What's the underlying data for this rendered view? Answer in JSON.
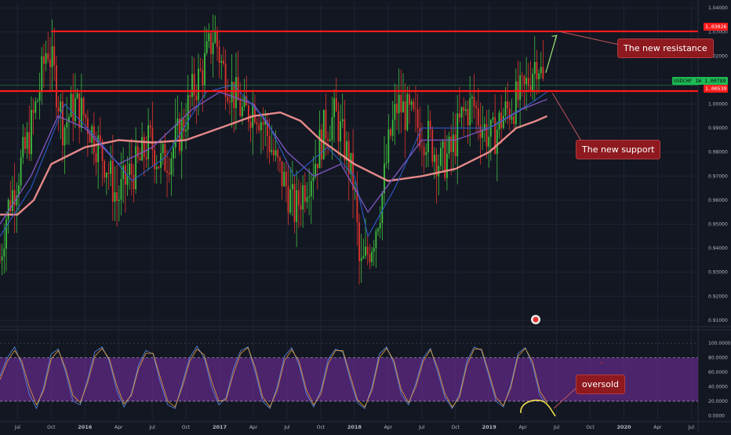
{
  "chart_data": [
    {
      "type": "candlestick",
      "panel": "price",
      "symbol_label": "USDCHF 1W",
      "current_value_label": "1.00789",
      "yaxis": {
        "range": [
          0.908,
          1.042
        ],
        "ticks": [
          "1.04000",
          "1.03000",
          "1.02000",
          "1.01000",
          "1.00000",
          "0.99000",
          "0.98000",
          "0.97000",
          "0.96000",
          "0.95000",
          "0.94000",
          "0.93000",
          "0.92000",
          "0.91000"
        ],
        "tick_values": [
          1.04,
          1.03,
          1.02,
          1.01,
          1.0,
          0.99,
          0.98,
          0.97,
          0.96,
          0.95,
          0.94,
          0.93,
          0.92,
          0.91
        ]
      },
      "xaxis": {
        "ticks": [
          "Jul",
          "Oct",
          "2016",
          "Apr",
          "Jul",
          "Oct",
          "2017",
          "Apr",
          "Jul",
          "Oct",
          "2018",
          "Apr",
          "Jul",
          "Oct",
          "2019",
          "Apr",
          "Jul",
          "Oct",
          "2020",
          "Apr",
          "Jul"
        ],
        "tick_times": [
          2015.5,
          2015.75,
          2016.0,
          2016.25,
          2016.5,
          2016.75,
          2017.0,
          2017.25,
          2017.5,
          2017.75,
          2018.0,
          2018.25,
          2018.5,
          2018.75,
          2019.0,
          2019.25,
          2019.5,
          2019.75,
          2020.0,
          2020.25,
          2020.5
        ],
        "range": [
          2015.37,
          2020.55
        ]
      },
      "price_path": [
        [
          2015.37,
          0.935
        ],
        [
          2015.42,
          0.955
        ],
        [
          2015.5,
          0.97
        ],
        [
          2015.58,
          0.985
        ],
        [
          2015.66,
          1.005
        ],
        [
          2015.72,
          1.025
        ],
        [
          2015.78,
          1.01
        ],
        [
          2015.84,
          0.99
        ],
        [
          2015.92,
          1.0
        ],
        [
          2016.0,
          0.995
        ],
        [
          2016.08,
          0.985
        ],
        [
          2016.16,
          0.975
        ],
        [
          2016.24,
          0.96
        ],
        [
          2016.32,
          0.97
        ],
        [
          2016.4,
          0.975
        ],
        [
          2016.48,
          0.985
        ],
        [
          2016.56,
          0.975
        ],
        [
          2016.64,
          0.98
        ],
        [
          2016.72,
          0.99
        ],
        [
          2016.8,
          1.005
        ],
        [
          2016.88,
          1.015
        ],
        [
          2016.96,
          1.03
        ],
        [
          2017.02,
          1.015
        ],
        [
          2017.1,
          1.005
        ],
        [
          2017.18,
          0.995
        ],
        [
          2017.26,
          1.0
        ],
        [
          2017.34,
          0.99
        ],
        [
          2017.42,
          0.975
        ],
        [
          2017.5,
          0.965
        ],
        [
          2017.56,
          0.955
        ],
        [
          2017.62,
          0.965
        ],
        [
          2017.7,
          0.975
        ],
        [
          2017.78,
          0.99
        ],
        [
          2017.86,
          0.995
        ],
        [
          2017.94,
          0.98
        ],
        [
          2018.0,
          0.965
        ],
        [
          2018.04,
          0.93
        ],
        [
          2018.08,
          0.935
        ],
        [
          2018.14,
          0.945
        ],
        [
          2018.2,
          0.96
        ],
        [
          2018.26,
          0.985
        ],
        [
          2018.32,
          1.0
        ],
        [
          2018.4,
          0.995
        ],
        [
          2018.48,
          0.99
        ],
        [
          2018.56,
          0.985
        ],
        [
          2018.64,
          0.975
        ],
        [
          2018.72,
          0.98
        ],
        [
          2018.8,
          0.995
        ],
        [
          2018.88,
          1.0
        ],
        [
          2018.96,
          0.99
        ],
        [
          2019.02,
          0.985
        ],
        [
          2019.1,
          0.995
        ],
        [
          2019.18,
          1.0
        ],
        [
          2019.26,
          1.005
        ],
        [
          2019.32,
          1.015
        ],
        [
          2019.36,
          1.02
        ],
        [
          2019.4,
          1.008
        ]
      ],
      "moving_averages": [
        {
          "color": "#f08f8f",
          "width": 2.4,
          "points": [
            [
              2015.37,
              0.954
            ],
            [
              2015.5,
              0.954
            ],
            [
              2015.62,
              0.96
            ],
            [
              2015.75,
              0.975
            ],
            [
              2016.0,
              0.982
            ],
            [
              2016.25,
              0.985
            ],
            [
              2016.5,
              0.984
            ],
            [
              2016.75,
              0.985
            ],
            [
              2017.0,
              0.99
            ],
            [
              2017.25,
              0.995
            ],
            [
              2017.45,
              0.9965
            ],
            [
              2017.6,
              0.993
            ],
            [
              2017.75,
              0.985
            ],
            [
              2018.0,
              0.975
            ],
            [
              2018.25,
              0.968
            ],
            [
              2018.5,
              0.97
            ],
            [
              2018.75,
              0.973
            ],
            [
              2019.0,
              0.98
            ],
            [
              2019.2,
              0.99
            ],
            [
              2019.35,
              0.993
            ],
            [
              2019.43,
              0.995
            ]
          ]
        },
        {
          "color": "#7e57c2",
          "width": 1.4,
          "points": [
            [
              2015.37,
              0.95
            ],
            [
              2015.6,
              0.97
            ],
            [
              2015.8,
              0.995
            ],
            [
              2016.0,
              0.99
            ],
            [
              2016.25,
              0.975
            ],
            [
              2016.5,
              0.982
            ],
            [
              2016.8,
              0.998
            ],
            [
              2017.0,
              1.005
            ],
            [
              2017.25,
              1.0
            ],
            [
              2017.5,
              0.98
            ],
            [
              2017.7,
              0.97
            ],
            [
              2017.9,
              0.975
            ],
            [
              2018.1,
              0.955
            ],
            [
              2018.3,
              0.97
            ],
            [
              2018.5,
              0.985
            ],
            [
              2018.75,
              0.985
            ],
            [
              2019.0,
              0.99
            ],
            [
              2019.25,
              0.998
            ],
            [
              2019.43,
              1.002
            ]
          ]
        },
        {
          "color": "#2f5fd0",
          "width": 1.1,
          "points": [
            [
              2015.37,
              0.945
            ],
            [
              2015.6,
              0.965
            ],
            [
              2015.85,
              1.0
            ],
            [
              2016.1,
              0.985
            ],
            [
              2016.35,
              0.968
            ],
            [
              2016.6,
              0.978
            ],
            [
              2016.9,
              1.005
            ],
            [
              2017.1,
              1.008
            ],
            [
              2017.35,
              0.993
            ],
            [
              2017.55,
              0.97
            ],
            [
              2017.8,
              0.982
            ],
            [
              2018.0,
              0.97
            ],
            [
              2018.1,
              0.945
            ],
            [
              2018.3,
              0.965
            ],
            [
              2018.5,
              0.99
            ],
            [
              2018.75,
              0.99
            ],
            [
              2019.0,
              0.99
            ],
            [
              2019.3,
              1.0
            ],
            [
              2019.43,
              1.005
            ]
          ]
        }
      ],
      "horizontal_levels": [
        {
          "value": 1.03026,
          "label": "1.03026",
          "color": "#ff1b1b",
          "x_start": 2015.75
        },
        {
          "value": 1.00539,
          "label": "1.00539",
          "color": "#ff1b1b",
          "x_start": 2015.37
        }
      ],
      "arrow": {
        "from": [
          2019.42,
          1.013
        ],
        "to": [
          2019.5,
          1.0285
        ],
        "color": "#9be67a"
      },
      "annotations": [
        {
          "text": "The new resistance",
          "value": 1.025,
          "time": 2019.88,
          "anchor_value": 1.0302,
          "anchor_time": 2019.52
        },
        {
          "text": "The new support",
          "value": 0.982,
          "time": 2019.79,
          "anchor_value": 1.0045,
          "anchor_time": 2019.47
        }
      ]
    },
    {
      "type": "line",
      "panel": "oscillator",
      "yaxis": {
        "range": [
          -5,
          110
        ],
        "ticks": [
          "100.0000",
          "80.0000",
          "60.0000",
          "40.0000",
          "20.0000",
          "0.0000"
        ],
        "tick_values": [
          100,
          80,
          60,
          40,
          20,
          0
        ]
      },
      "band": {
        "from": 20,
        "to": 80,
        "color": "#7b2fa8"
      },
      "series": [
        {
          "color": "#5b8fe8",
          "values": [
            55,
            80,
            95,
            70,
            30,
            10,
            40,
            85,
            92,
            60,
            20,
            15,
            50,
            88,
            95,
            75,
            35,
            12,
            30,
            70,
            90,
            85,
            45,
            15,
            10,
            45,
            80,
            96,
            80,
            40,
            15,
            25,
            65,
            90,
            95,
            60,
            20,
            10,
            40,
            82,
            94,
            70,
            30,
            12,
            35,
            78,
            92,
            88,
            50,
            18,
            10,
            40,
            85,
            95,
            72,
            30,
            15,
            45,
            80,
            93,
            60,
            25,
            10,
            30,
            75,
            95,
            90,
            55,
            20,
            12,
            42,
            86,
            94,
            70,
            28,
            15
          ]
        },
        {
          "color": "#e8a23a",
          "values": [
            50,
            75,
            90,
            75,
            40,
            15,
            35,
            78,
            90,
            65,
            28,
            18,
            45,
            82,
            93,
            78,
            42,
            16,
            28,
            65,
            86,
            86,
            52,
            20,
            12,
            40,
            75,
            92,
            84,
            48,
            20,
            22,
            58,
            86,
            94,
            66,
            26,
            12,
            35,
            76,
            91,
            75,
            36,
            15,
            30,
            72,
            90,
            90,
            56,
            22,
            12,
            35,
            80,
            93,
            76,
            36,
            18,
            40,
            75,
            91,
            66,
            30,
            12,
            26,
            70,
            92,
            92,
            60,
            25,
            14,
            38,
            82,
            93,
            75,
            34,
            18
          ]
        }
      ],
      "annotations": [
        {
          "text": "oversold",
          "value": 38,
          "time": 2019.72,
          "anchor_value": 10,
          "anchor_time": 2019.48
        }
      ]
    }
  ]
}
